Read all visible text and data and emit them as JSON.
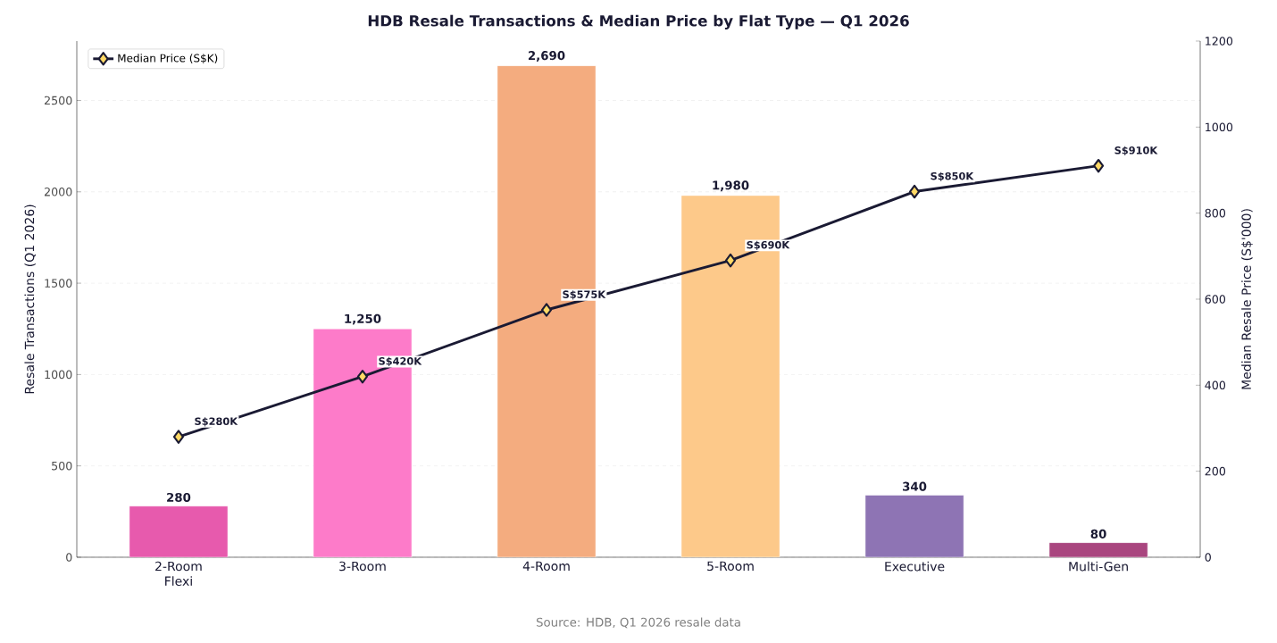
{
  "chart_data": {
    "type": "bar",
    "title": "HDB Resale Transactions & Median Price by Flat Type — Q1 2026",
    "categories": [
      "2-Room Flexi",
      "3-Room",
      "4-Room",
      "5-Room",
      "Executive",
      "Multi-Gen"
    ],
    "ylabel": "Resale Transactions (Q1 2026)",
    "y2label": "Median Resale Price (S$'000)",
    "series": [
      {
        "values": [
          280,
          1250,
          2690,
          1980,
          340,
          80
        ],
        "colors": [
          "#e75aad",
          "#fd7bc9",
          "#f4ac7f",
          "#fdc98a",
          "#8e74b4",
          "#a9467f"
        ],
        "value_labels": [
          "280",
          "1,250",
          "2,690",
          "1,980",
          "340",
          "80"
        ]
      },
      {
        "type": "line",
        "name": "Median Price (S$K)",
        "axis": "y2",
        "color": "#1a1a33",
        "marker": "diamond",
        "values": [
          280,
          420,
          575,
          690,
          850,
          910
        ],
        "value_labels": [
          "S$280K",
          "S$420K",
          "S$575K",
          "S$690K",
          "S$850K",
          "S$910K"
        ]
      }
    ],
    "ylim": [
      0,
      2825
    ],
    "yticks": [
      0,
      500,
      1000,
      1500,
      2000,
      2500
    ],
    "y2lim": [
      0,
      1200
    ],
    "y2ticks": [
      0,
      200,
      400,
      600,
      800,
      1000,
      1200
    ],
    "grid": "y",
    "legend": "top left",
    "annotations": [
      "Source: HDB, Q1 2026 resale data"
    ]
  }
}
